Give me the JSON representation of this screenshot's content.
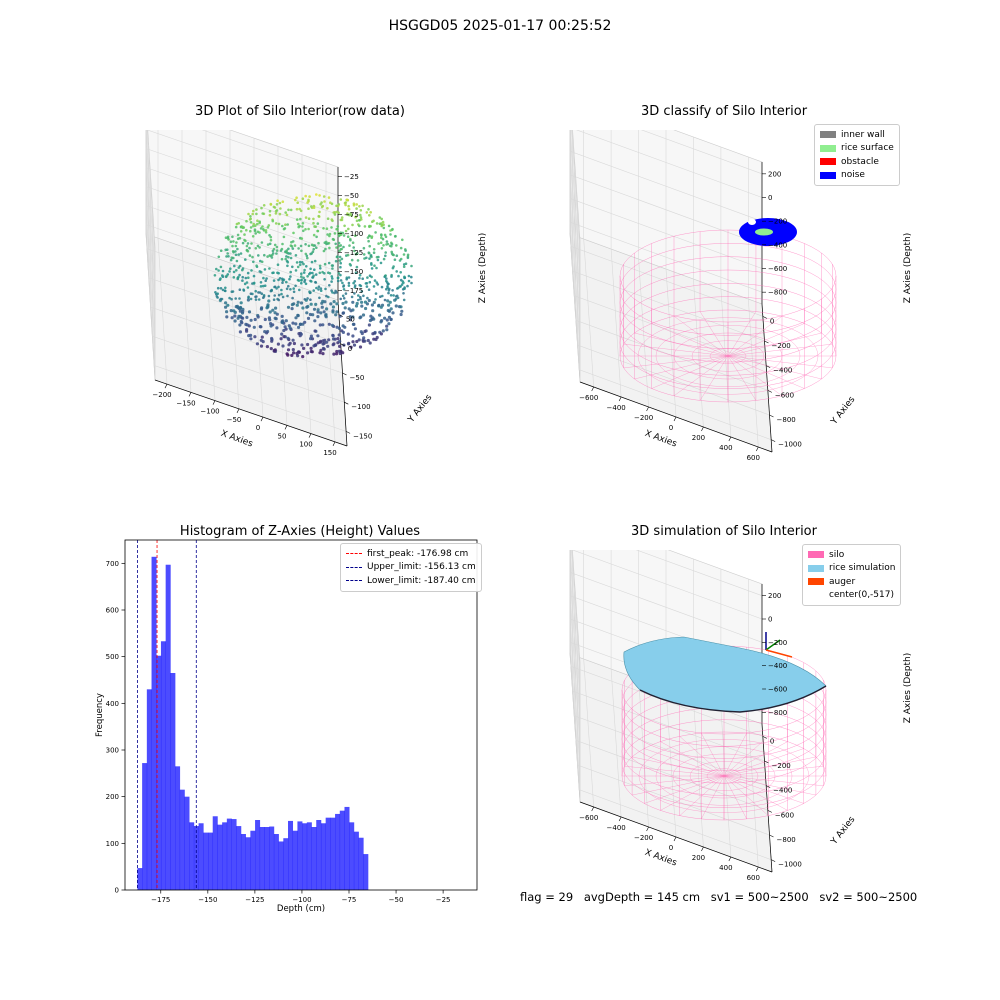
{
  "figure": {
    "suptitle": "HSGGD05 2025-01-17 00:25:52"
  },
  "footer": {
    "flag": "flag = 29",
    "avg_depth": "avgDepth = 145 cm",
    "sv1": "sv1 = 500~2500",
    "sv2": "sv2 = 500~2500"
  },
  "chart_data": [
    {
      "id": "raw",
      "type": "scatter",
      "title": "3D Plot of Silo Interior(row data)",
      "xlabel": "X Axies",
      "ylabel": "Y Axies",
      "zlabel": "Z Axies (Depth)",
      "x_ticks": [
        "−200",
        "−150",
        "−100",
        "−50",
        "0",
        "50",
        "100",
        "150"
      ],
      "y_ticks": [
        "−150",
        "−100",
        "−50",
        "0",
        "50"
      ],
      "z_ticks": [
        "−25",
        "−50",
        "−75",
        "−100",
        "−125",
        "−150",
        "−175"
      ],
      "xlim": [
        -200,
        160
      ],
      "ylim": [
        -170,
        70
      ],
      "zlim": [
        -195,
        -15
      ],
      "colormap": "viridis"
    },
    {
      "id": "classify",
      "type": "scatter",
      "title": "3D classify of Silo Interior",
      "xlabel": "X Axies",
      "ylabel": "Y Axies",
      "zlabel": "Z Axies (Depth)",
      "x_ticks": [
        "−600",
        "−400",
        "−200",
        "0",
        "200",
        "400",
        "600"
      ],
      "y_ticks": [
        "−1000",
        "−800",
        "−600",
        "−400",
        "−200",
        "0"
      ],
      "z_ticks": [
        "200",
        "0",
        "−200",
        "−400",
        "−600",
        "−800"
      ],
      "legend": [
        {
          "label": "inner wall",
          "color": "#808080"
        },
        {
          "label": "rice surface",
          "color": "#90ee90"
        },
        {
          "label": "obstacle",
          "color": "#ff0000"
        },
        {
          "label": "noise",
          "color": "#0000ff"
        }
      ],
      "wireframe_color": "#ff69b4"
    },
    {
      "id": "hist",
      "type": "bar",
      "title": "Histogram of Z-Axies (Height) Values",
      "xlabel": "Depth (cm)",
      "ylabel": "Frequency",
      "xlim": [
        -194,
        -7
      ],
      "ylim": [
        0,
        750
      ],
      "x_ticks": [
        -175,
        -150,
        -125,
        -100,
        -75,
        -50,
        -25
      ],
      "x_tick_labels": [
        "−175",
        "−150",
        "−125",
        "−100",
        "−75",
        "−50",
        "−25"
      ],
      "y_ticks": [
        0,
        100,
        200,
        300,
        400,
        500,
        600,
        700
      ],
      "bin_start": -187.4,
      "bin_width": 2.5,
      "color": "#0000ff",
      "values": [
        47,
        272,
        430,
        714,
        502,
        533,
        697,
        465,
        265,
        215,
        200,
        145,
        137,
        143,
        123,
        123,
        158,
        140,
        145,
        153,
        152,
        137,
        120,
        113,
        127,
        150,
        135,
        135,
        136,
        120,
        104,
        111,
        148,
        127,
        147,
        143,
        145,
        135,
        150,
        143,
        155,
        155,
        163,
        170,
        178,
        145,
        125,
        112,
        77
      ],
      "vlines": [
        {
          "label": "first_peak: -176.98 cm",
          "x": -176.98,
          "color": "#ff0000"
        },
        {
          "label": "Upper_limit: -156.13 cm",
          "x": -156.13,
          "color": "#00008b"
        },
        {
          "label": "Lower_limit: -187.40 cm",
          "x": -187.4,
          "color": "#00008b"
        }
      ]
    },
    {
      "id": "sim",
      "type": "scatter",
      "title": "3D simulation of Silo Interior",
      "xlabel": "X Axies",
      "ylabel": "Y Axies",
      "zlabel": "Z Axies (Depth)",
      "x_ticks": [
        "−600",
        "−400",
        "−200",
        "0",
        "200",
        "400",
        "600"
      ],
      "y_ticks": [
        "−1000",
        "−800",
        "−600",
        "−400",
        "−200",
        "0"
      ],
      "z_ticks": [
        "200",
        "0",
        "−200",
        "−400",
        "−600",
        "−800"
      ],
      "legend": [
        {
          "label": "silo",
          "color": "#ff69b4"
        },
        {
          "label": "rice simulation",
          "color": "#87ceeb"
        },
        {
          "label": "auger",
          "color": "#ff4500"
        },
        {
          "label": "center(0,-517)",
          "color": ""
        }
      ]
    }
  ]
}
